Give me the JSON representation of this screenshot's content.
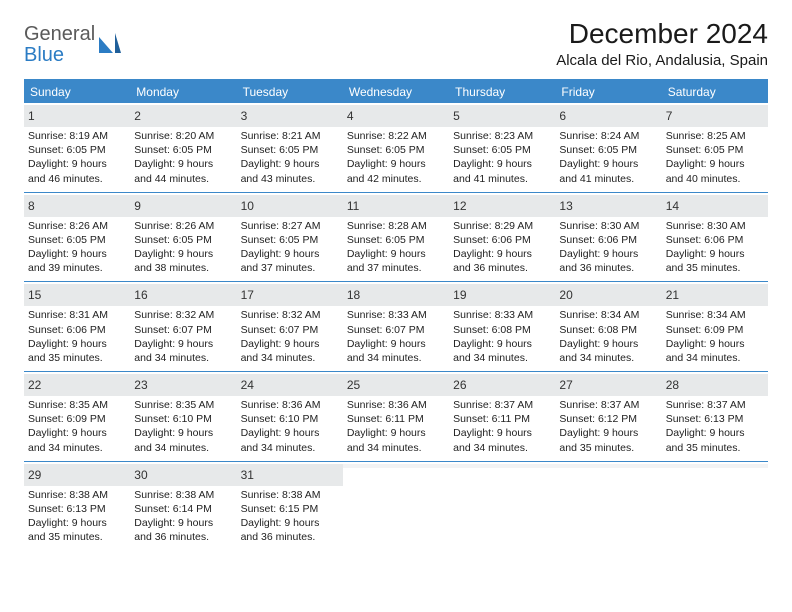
{
  "logo": {
    "top": "General",
    "bottom": "Blue"
  },
  "title": "December 2024",
  "location": "Alcala del Rio, Andalusia, Spain",
  "colors": {
    "header_bg": "#3b88c9",
    "header_text": "#ffffff",
    "daynum_bg": "#e7e9ea",
    "daynum_bg_empty": "#f2f3f4",
    "text": "#222222",
    "rule": "#3b88c9",
    "logo_gray": "#5a5a5a",
    "logo_blue": "#2b7cc4"
  },
  "dow": [
    "Sunday",
    "Monday",
    "Tuesday",
    "Wednesday",
    "Thursday",
    "Friday",
    "Saturday"
  ],
  "weeks": [
    [
      {
        "n": "1",
        "sr": "8:19 AM",
        "ss": "6:05 PM",
        "dl": "9 hours and 46 minutes."
      },
      {
        "n": "2",
        "sr": "8:20 AM",
        "ss": "6:05 PM",
        "dl": "9 hours and 44 minutes."
      },
      {
        "n": "3",
        "sr": "8:21 AM",
        "ss": "6:05 PM",
        "dl": "9 hours and 43 minutes."
      },
      {
        "n": "4",
        "sr": "8:22 AM",
        "ss": "6:05 PM",
        "dl": "9 hours and 42 minutes."
      },
      {
        "n": "5",
        "sr": "8:23 AM",
        "ss": "6:05 PM",
        "dl": "9 hours and 41 minutes."
      },
      {
        "n": "6",
        "sr": "8:24 AM",
        "ss": "6:05 PM",
        "dl": "9 hours and 41 minutes."
      },
      {
        "n": "7",
        "sr": "8:25 AM",
        "ss": "6:05 PM",
        "dl": "9 hours and 40 minutes."
      }
    ],
    [
      {
        "n": "8",
        "sr": "8:26 AM",
        "ss": "6:05 PM",
        "dl": "9 hours and 39 minutes."
      },
      {
        "n": "9",
        "sr": "8:26 AM",
        "ss": "6:05 PM",
        "dl": "9 hours and 38 minutes."
      },
      {
        "n": "10",
        "sr": "8:27 AM",
        "ss": "6:05 PM",
        "dl": "9 hours and 37 minutes."
      },
      {
        "n": "11",
        "sr": "8:28 AM",
        "ss": "6:05 PM",
        "dl": "9 hours and 37 minutes."
      },
      {
        "n": "12",
        "sr": "8:29 AM",
        "ss": "6:06 PM",
        "dl": "9 hours and 36 minutes."
      },
      {
        "n": "13",
        "sr": "8:30 AM",
        "ss": "6:06 PM",
        "dl": "9 hours and 36 minutes."
      },
      {
        "n": "14",
        "sr": "8:30 AM",
        "ss": "6:06 PM",
        "dl": "9 hours and 35 minutes."
      }
    ],
    [
      {
        "n": "15",
        "sr": "8:31 AM",
        "ss": "6:06 PM",
        "dl": "9 hours and 35 minutes."
      },
      {
        "n": "16",
        "sr": "8:32 AM",
        "ss": "6:07 PM",
        "dl": "9 hours and 34 minutes."
      },
      {
        "n": "17",
        "sr": "8:32 AM",
        "ss": "6:07 PM",
        "dl": "9 hours and 34 minutes."
      },
      {
        "n": "18",
        "sr": "8:33 AM",
        "ss": "6:07 PM",
        "dl": "9 hours and 34 minutes."
      },
      {
        "n": "19",
        "sr": "8:33 AM",
        "ss": "6:08 PM",
        "dl": "9 hours and 34 minutes."
      },
      {
        "n": "20",
        "sr": "8:34 AM",
        "ss": "6:08 PM",
        "dl": "9 hours and 34 minutes."
      },
      {
        "n": "21",
        "sr": "8:34 AM",
        "ss": "6:09 PM",
        "dl": "9 hours and 34 minutes."
      }
    ],
    [
      {
        "n": "22",
        "sr": "8:35 AM",
        "ss": "6:09 PM",
        "dl": "9 hours and 34 minutes."
      },
      {
        "n": "23",
        "sr": "8:35 AM",
        "ss": "6:10 PM",
        "dl": "9 hours and 34 minutes."
      },
      {
        "n": "24",
        "sr": "8:36 AM",
        "ss": "6:10 PM",
        "dl": "9 hours and 34 minutes."
      },
      {
        "n": "25",
        "sr": "8:36 AM",
        "ss": "6:11 PM",
        "dl": "9 hours and 34 minutes."
      },
      {
        "n": "26",
        "sr": "8:37 AM",
        "ss": "6:11 PM",
        "dl": "9 hours and 34 minutes."
      },
      {
        "n": "27",
        "sr": "8:37 AM",
        "ss": "6:12 PM",
        "dl": "9 hours and 35 minutes."
      },
      {
        "n": "28",
        "sr": "8:37 AM",
        "ss": "6:13 PM",
        "dl": "9 hours and 35 minutes."
      }
    ],
    [
      {
        "n": "29",
        "sr": "8:38 AM",
        "ss": "6:13 PM",
        "dl": "9 hours and 35 minutes."
      },
      {
        "n": "30",
        "sr": "8:38 AM",
        "ss": "6:14 PM",
        "dl": "9 hours and 36 minutes."
      },
      {
        "n": "31",
        "sr": "8:38 AM",
        "ss": "6:15 PM",
        "dl": "9 hours and 36 minutes."
      },
      {
        "empty": true
      },
      {
        "empty": true
      },
      {
        "empty": true
      },
      {
        "empty": true
      }
    ]
  ],
  "labels": {
    "sunrise": "Sunrise:",
    "sunset": "Sunset:",
    "daylight": "Daylight:"
  }
}
